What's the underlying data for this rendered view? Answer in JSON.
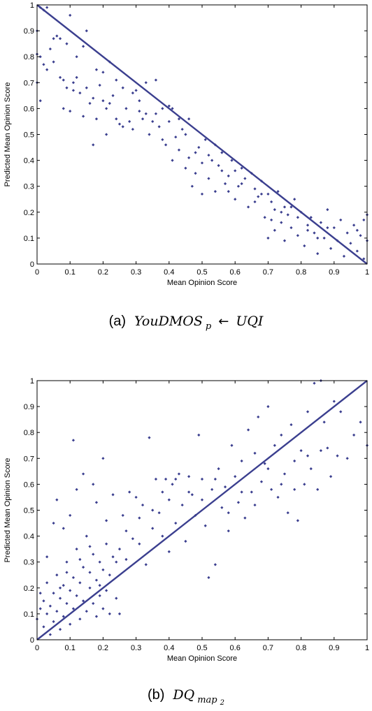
{
  "captions": [
    {
      "letter": "(a)",
      "name": "YouDMOS",
      "sub": "p",
      "arrow": "←",
      "target": "UQI"
    },
    {
      "letter": "(b)",
      "name": "DQ",
      "sub": "map",
      "subsub": "2"
    }
  ],
  "colors": {
    "marker": "#3b3f8f",
    "line": "#3b3f8f",
    "axes": "#000000"
  },
  "chart_data": [
    {
      "type": "scatter",
      "xlabel": "Mean Opinion Score",
      "ylabel": "Predicted Mean Opinion Score",
      "xlim": [
        0,
        1
      ],
      "ylim": [
        0,
        1
      ],
      "xticks": [
        "0",
        "0.1",
        "0.2",
        "0.3",
        "0.4",
        "0.5",
        "0.6",
        "0.7",
        "0.8",
        "0.9",
        "1"
      ],
      "yticks": [
        "0",
        "0.1",
        "0.2",
        "0.3",
        "0.4",
        "0.5",
        "0.6",
        "0.7",
        "0.8",
        "0.9",
        "1"
      ],
      "grid": false,
      "fit_line": {
        "x": [
          0,
          1
        ],
        "y": [
          1,
          0
        ]
      },
      "points": [
        [
          0.01,
          0.99
        ],
        [
          0.02,
          0.98
        ],
        [
          0.03,
          0.99
        ],
        [
          0.0,
          0.9
        ],
        [
          0.05,
          0.87
        ],
        [
          0.06,
          0.88
        ],
        [
          0.07,
          0.87
        ],
        [
          0.09,
          0.85
        ],
        [
          0.1,
          0.96
        ],
        [
          0.14,
          0.84
        ],
        [
          0.15,
          0.9
        ],
        [
          0.12,
          0.8
        ],
        [
          0.0,
          0.81
        ],
        [
          0.01,
          0.8
        ],
        [
          0.02,
          0.77
        ],
        [
          0.03,
          0.75
        ],
        [
          0.04,
          0.83
        ],
        [
          0.0,
          0.7
        ],
        [
          0.01,
          0.63
        ],
        [
          0.05,
          0.78
        ],
        [
          0.07,
          0.72
        ],
        [
          0.08,
          0.71
        ],
        [
          0.08,
          0.6
        ],
        [
          0.09,
          0.68
        ],
        [
          0.1,
          0.59
        ],
        [
          0.11,
          0.7
        ],
        [
          0.11,
          0.67
        ],
        [
          0.12,
          0.72
        ],
        [
          0.13,
          0.66
        ],
        [
          0.14,
          0.57
        ],
        [
          0.15,
          0.68
        ],
        [
          0.16,
          0.62
        ],
        [
          0.17,
          0.64
        ],
        [
          0.18,
          0.56
        ],
        [
          0.18,
          0.75
        ],
        [
          0.19,
          0.69
        ],
        [
          0.2,
          0.74
        ],
        [
          0.2,
          0.63
        ],
        [
          0.21,
          0.6
        ],
        [
          0.22,
          0.78
        ],
        [
          0.22,
          0.62
        ],
        [
          0.23,
          0.65
        ],
        [
          0.24,
          0.71
        ],
        [
          0.24,
          0.56
        ],
        [
          0.25,
          0.54
        ],
        [
          0.26,
          0.68
        ],
        [
          0.27,
          0.6
        ],
        [
          0.28,
          0.55
        ],
        [
          0.29,
          0.52
        ],
        [
          0.3,
          0.67
        ],
        [
          0.31,
          0.63
        ],
        [
          0.31,
          0.59
        ],
        [
          0.32,
          0.56
        ],
        [
          0.33,
          0.7
        ],
        [
          0.34,
          0.5
        ],
        [
          0.35,
          0.55
        ],
        [
          0.36,
          0.71
        ],
        [
          0.37,
          0.53
        ],
        [
          0.38,
          0.48
        ],
        [
          0.39,
          0.46
        ],
        [
          0.4,
          0.61
        ],
        [
          0.4,
          0.55
        ],
        [
          0.41,
          0.4
        ],
        [
          0.42,
          0.49
        ],
        [
          0.43,
          0.44
        ],
        [
          0.44,
          0.52
        ],
        [
          0.45,
          0.37
        ],
        [
          0.46,
          0.41
        ],
        [
          0.46,
          0.56
        ],
        [
          0.47,
          0.3
        ],
        [
          0.48,
          0.35
        ],
        [
          0.49,
          0.45
        ],
        [
          0.5,
          0.39
        ],
        [
          0.5,
          0.27
        ],
        [
          0.51,
          0.48
        ],
        [
          0.52,
          0.33
        ],
        [
          0.53,
          0.4
        ],
        [
          0.54,
          0.28
        ],
        [
          0.54,
          0.46
        ],
        [
          0.55,
          0.38
        ],
        [
          0.56,
          0.43
        ],
        [
          0.57,
          0.31
        ],
        [
          0.58,
          0.34
        ],
        [
          0.59,
          0.4
        ],
        [
          0.6,
          0.25
        ],
        [
          0.6,
          0.36
        ],
        [
          0.61,
          0.3
        ],
        [
          0.62,
          0.37
        ],
        [
          0.63,
          0.33
        ],
        [
          0.64,
          0.22
        ],
        [
          0.65,
          0.35
        ],
        [
          0.66,
          0.29
        ],
        [
          0.67,
          0.26
        ],
        [
          0.68,
          0.32
        ],
        [
          0.69,
          0.18
        ],
        [
          0.7,
          0.27
        ],
        [
          0.7,
          0.1
        ],
        [
          0.71,
          0.24
        ],
        [
          0.72,
          0.21
        ],
        [
          0.72,
          0.13
        ],
        [
          0.73,
          0.28
        ],
        [
          0.74,
          0.16
        ],
        [
          0.75,
          0.22
        ],
        [
          0.75,
          0.09
        ],
        [
          0.76,
          0.19
        ],
        [
          0.77,
          0.14
        ],
        [
          0.78,
          0.25
        ],
        [
          0.79,
          0.11
        ],
        [
          0.8,
          0.2
        ],
        [
          0.81,
          0.07
        ],
        [
          0.82,
          0.15
        ],
        [
          0.83,
          0.18
        ],
        [
          0.84,
          0.12
        ],
        [
          0.85,
          0.04
        ],
        [
          0.86,
          0.16
        ],
        [
          0.87,
          0.1
        ],
        [
          0.88,
          0.21
        ],
        [
          0.89,
          0.06
        ],
        [
          0.9,
          0.14
        ],
        [
          0.91,
          0.09
        ],
        [
          0.92,
          0.17
        ],
        [
          0.93,
          0.03
        ],
        [
          0.94,
          0.12
        ],
        [
          0.95,
          0.08
        ],
        [
          0.96,
          0.15
        ],
        [
          0.97,
          0.05
        ],
        [
          0.98,
          0.11
        ],
        [
          0.99,
          0.17
        ],
        [
          1.0,
          0.09
        ],
        [
          1.0,
          0.19
        ],
        [
          0.99,
          0.02
        ],
        [
          0.97,
          0.13
        ],
        [
          0.17,
          0.46
        ],
        [
          0.21,
          0.5
        ],
        [
          0.26,
          0.53
        ],
        [
          0.29,
          0.66
        ],
        [
          0.33,
          0.58
        ],
        [
          0.36,
          0.58
        ],
        [
          0.38,
          0.6
        ],
        [
          0.41,
          0.6
        ],
        [
          0.43,
          0.56
        ],
        [
          0.45,
          0.5
        ],
        [
          0.48,
          0.43
        ],
        [
          0.52,
          0.42
        ],
        [
          0.56,
          0.36
        ],
        [
          0.58,
          0.28
        ],
        [
          0.62,
          0.31
        ],
        [
          0.66,
          0.24
        ],
        [
          0.68,
          0.27
        ],
        [
          0.71,
          0.17
        ],
        [
          0.74,
          0.2
        ],
        [
          0.77,
          0.22
        ],
        [
          0.79,
          0.18
        ],
        [
          0.82,
          0.13
        ],
        [
          0.85,
          0.1
        ],
        [
          0.88,
          0.14
        ]
      ]
    },
    {
      "type": "scatter",
      "xlabel": "Mean Opinion Score",
      "ylabel": "Predicted Mean Opinion Score",
      "xlim": [
        0,
        1
      ],
      "ylim": [
        0,
        1
      ],
      "xticks": [
        "0",
        "0.1",
        "0.2",
        "0.3",
        "0.4",
        "0.5",
        "0.6",
        "0.7",
        "0.8",
        "0.9",
        "1"
      ],
      "yticks": [
        "0",
        "0.1",
        "0.2",
        "0.3",
        "0.4",
        "0.5",
        "0.6",
        "0.7",
        "0.8",
        "0.9",
        "1"
      ],
      "grid": false,
      "fit_line": {
        "x": [
          0,
          1
        ],
        "y": [
          0,
          1
        ]
      },
      "points": [
        [
          0.0,
          0.08
        ],
        [
          0.01,
          0.12
        ],
        [
          0.01,
          0.18
        ],
        [
          0.02,
          0.05
        ],
        [
          0.02,
          0.15
        ],
        [
          0.03,
          0.1
        ],
        [
          0.03,
          0.22
        ],
        [
          0.04,
          0.02
        ],
        [
          0.04,
          0.13
        ],
        [
          0.05,
          0.07
        ],
        [
          0.05,
          0.18
        ],
        [
          0.06,
          0.11
        ],
        [
          0.06,
          0.25
        ],
        [
          0.07,
          0.04
        ],
        [
          0.07,
          0.16
        ],
        [
          0.08,
          0.09
        ],
        [
          0.08,
          0.21
        ],
        [
          0.09,
          0.14
        ],
        [
          0.09,
          0.3
        ],
        [
          0.1,
          0.06
        ],
        [
          0.1,
          0.19
        ],
        [
          0.11,
          0.12
        ],
        [
          0.11,
          0.24
        ],
        [
          0.12,
          0.17
        ],
        [
          0.12,
          0.35
        ],
        [
          0.13,
          0.08
        ],
        [
          0.13,
          0.22
        ],
        [
          0.14,
          0.15
        ],
        [
          0.14,
          0.28
        ],
        [
          0.15,
          0.11
        ],
        [
          0.15,
          0.4
        ],
        [
          0.16,
          0.2
        ],
        [
          0.16,
          0.26
        ],
        [
          0.17,
          0.14
        ],
        [
          0.17,
          0.33
        ],
        [
          0.18,
          0.09
        ],
        [
          0.18,
          0.23
        ],
        [
          0.19,
          0.3
        ],
        [
          0.19,
          0.17
        ],
        [
          0.2,
          0.12
        ],
        [
          0.2,
          0.27
        ],
        [
          0.21,
          0.37
        ],
        [
          0.21,
          0.19
        ],
        [
          0.22,
          0.1
        ],
        [
          0.22,
          0.25
        ],
        [
          0.23,
          0.32
        ],
        [
          0.24,
          0.16
        ],
        [
          0.25,
          0.1
        ],
        [
          0.03,
          0.32
        ],
        [
          0.05,
          0.45
        ],
        [
          0.06,
          0.54
        ],
        [
          0.08,
          0.43
        ],
        [
          0.1,
          0.48
        ],
        [
          0.11,
          0.77
        ],
        [
          0.12,
          0.58
        ],
        [
          0.14,
          0.64
        ],
        [
          0.17,
          0.6
        ],
        [
          0.18,
          0.53
        ],
        [
          0.2,
          0.7
        ],
        [
          0.21,
          0.46
        ],
        [
          0.23,
          0.56
        ],
        [
          0.25,
          0.35
        ],
        [
          0.26,
          0.48
        ],
        [
          0.27,
          0.42
        ],
        [
          0.28,
          0.57
        ],
        [
          0.29,
          0.39
        ],
        [
          0.3,
          0.55
        ],
        [
          0.31,
          0.47
        ],
        [
          0.32,
          0.52
        ],
        [
          0.33,
          0.29
        ],
        [
          0.34,
          0.78
        ],
        [
          0.35,
          0.43
        ],
        [
          0.36,
          0.62
        ],
        [
          0.37,
          0.49
        ],
        [
          0.38,
          0.57
        ],
        [
          0.39,
          0.62
        ],
        [
          0.4,
          0.34
        ],
        [
          0.4,
          0.54
        ],
        [
          0.41,
          0.6
        ],
        [
          0.42,
          0.45
        ],
        [
          0.43,
          0.64
        ],
        [
          0.44,
          0.52
        ],
        [
          0.45,
          0.38
        ],
        [
          0.46,
          0.63
        ],
        [
          0.47,
          0.56
        ],
        [
          0.48,
          0.48
        ],
        [
          0.49,
          0.79
        ],
        [
          0.5,
          0.62
        ],
        [
          0.51,
          0.44
        ],
        [
          0.52,
          0.24
        ],
        [
          0.53,
          0.58
        ],
        [
          0.54,
          0.29
        ],
        [
          0.55,
          0.66
        ],
        [
          0.56,
          0.51
        ],
        [
          0.57,
          0.59
        ],
        [
          0.58,
          0.42
        ],
        [
          0.59,
          0.75
        ],
        [
          0.6,
          0.63
        ],
        [
          0.61,
          0.53
        ],
        [
          0.62,
          0.69
        ],
        [
          0.63,
          0.47
        ],
        [
          0.64,
          0.81
        ],
        [
          0.65,
          0.57
        ],
        [
          0.66,
          0.72
        ],
        [
          0.67,
          0.86
        ],
        [
          0.68,
          0.61
        ],
        [
          0.69,
          0.68
        ],
        [
          0.7,
          0.9
        ],
        [
          0.71,
          0.58
        ],
        [
          0.72,
          0.75
        ],
        [
          0.73,
          0.55
        ],
        [
          0.74,
          0.79
        ],
        [
          0.75,
          0.64
        ],
        [
          0.76,
          0.49
        ],
        [
          0.77,
          0.83
        ],
        [
          0.78,
          0.69
        ],
        [
          0.79,
          0.46
        ],
        [
          0.8,
          0.73
        ],
        [
          0.81,
          0.6
        ],
        [
          0.82,
          0.88
        ],
        [
          0.83,
          0.66
        ],
        [
          0.84,
          0.99
        ],
        [
          0.85,
          0.58
        ],
        [
          0.86,
          1.0
        ],
        [
          0.87,
          0.84
        ],
        [
          0.88,
          0.74
        ],
        [
          0.89,
          0.63
        ],
        [
          0.9,
          0.92
        ],
        [
          0.91,
          0.71
        ],
        [
          0.92,
          0.88
        ],
        [
          0.94,
          0.7
        ],
        [
          0.96,
          0.79
        ],
        [
          0.98,
          0.84
        ],
        [
          1.0,
          0.75
        ],
        [
          0.07,
          0.2
        ],
        [
          0.09,
          0.26
        ],
        [
          0.13,
          0.31
        ],
        [
          0.16,
          0.36
        ],
        [
          0.19,
          0.21
        ],
        [
          0.24,
          0.3
        ],
        [
          0.27,
          0.31
        ],
        [
          0.31,
          0.37
        ],
        [
          0.35,
          0.5
        ],
        [
          0.38,
          0.4
        ],
        [
          0.42,
          0.62
        ],
        [
          0.46,
          0.57
        ],
        [
          0.5,
          0.54
        ],
        [
          0.54,
          0.62
        ],
        [
          0.58,
          0.49
        ],
        [
          0.62,
          0.57
        ],
        [
          0.66,
          0.52
        ],
        [
          0.7,
          0.66
        ],
        [
          0.74,
          0.6
        ],
        [
          0.78,
          0.58
        ],
        [
          0.82,
          0.71
        ],
        [
          0.86,
          0.73
        ]
      ]
    }
  ]
}
